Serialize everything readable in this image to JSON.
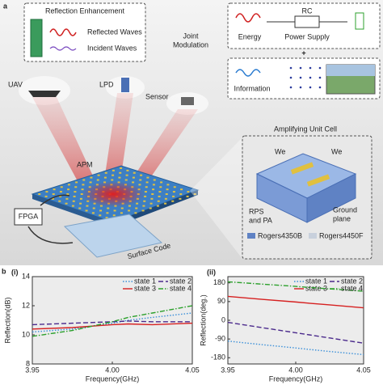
{
  "figure": {
    "panel_a": "a",
    "panel_b": "b",
    "reflection_title": "Reflection Enhancement",
    "reflected": "Reflected Waves",
    "incident": "Incident Waves",
    "joint_modulation": [
      "Joint",
      "Modulation"
    ],
    "rc": "RC",
    "energy": "Energy",
    "power_supply": "Power Supply",
    "plus": "+",
    "information": "Information",
    "uav": "UAV",
    "lpd": "LPD",
    "sensor": "Sensor",
    "apm": "APM",
    "fpga": "FPGA",
    "surface_code": "Surface Code",
    "unit_cell_title": "Amplifying Unit Cell",
    "we_1": "We",
    "we_2": "We",
    "rps": [
      "RPS",
      "and PA"
    ],
    "ground": [
      "Ground",
      "plane"
    ],
    "material_1": "Rogers4350B",
    "material_2": "Rogers4450F"
  },
  "chart_data": [
    {
      "type": "line",
      "title": "(i)",
      "x_label": "Frequency(GHz)",
      "y_label": "Reflection(dB)",
      "x": [
        3.95,
        3.975,
        4.0,
        4.01,
        4.025,
        4.05
      ],
      "xlim": [
        3.95,
        4.05
      ],
      "xticks": [
        3.95,
        {
          "value": 4,
          "label": "4.00"
        },
        4.05
      ],
      "ylim": [
        8,
        14
      ],
      "yticks": [
        8,
        10,
        12,
        14
      ],
      "series": [
        {
          "name": "state 1",
          "color": "#3a8fd8",
          "dash": "dotted",
          "values": [
            10.2,
            10.4,
            10.8,
            11.0,
            11.2,
            11.5
          ]
        },
        {
          "name": "state 2",
          "color": "#4b2a8c",
          "dash": "dashed",
          "values": [
            10.7,
            10.8,
            10.9,
            10.95,
            10.9,
            10.9
          ]
        },
        {
          "name": "state 3",
          "color": "#d62020",
          "dash": "solid",
          "values": [
            10.4,
            10.5,
            10.7,
            10.75,
            10.7,
            10.8
          ]
        },
        {
          "name": "state 4",
          "color": "#2ca02c",
          "dash": "dashdot",
          "values": [
            9.9,
            10.3,
            10.9,
            11.2,
            11.5,
            12.0
          ]
        }
      ]
    },
    {
      "type": "line",
      "title": "(ii)",
      "x_label": "Frequency(GHz)",
      "y_label": "Reflection(deg.)",
      "x": [
        3.95,
        3.975,
        4.0,
        4.01,
        4.025,
        4.05
      ],
      "xlim": [
        3.95,
        4.05
      ],
      "xticks": [
        3.95,
        {
          "value": 4,
          "label": "4.00"
        },
        4.05
      ],
      "ylim": [
        -210,
        210
      ],
      "yticks": [
        -180,
        -90,
        0,
        90,
        180
      ],
      "series": [
        {
          "name": "state 1",
          "color": "#3a8fd8",
          "dash": "dotted",
          "values": [
            -100,
            -117,
            -133,
            -140,
            -150,
            -165
          ]
        },
        {
          "name": "state 2",
          "color": "#4b2a8c",
          "dash": "dashed",
          "values": [
            -10,
            -35,
            -60,
            -70,
            -85,
            -110
          ]
        },
        {
          "name": "state 3",
          "color": "#d62020",
          "dash": "solid",
          "values": [
            115,
            101,
            88,
            82,
            74,
            60
          ]
        },
        {
          "name": "state 4",
          "color": "#2ca02c",
          "dash": "dashdot",
          "values": [
            185,
            174,
            163,
            158,
            151,
            140
          ]
        }
      ]
    }
  ]
}
